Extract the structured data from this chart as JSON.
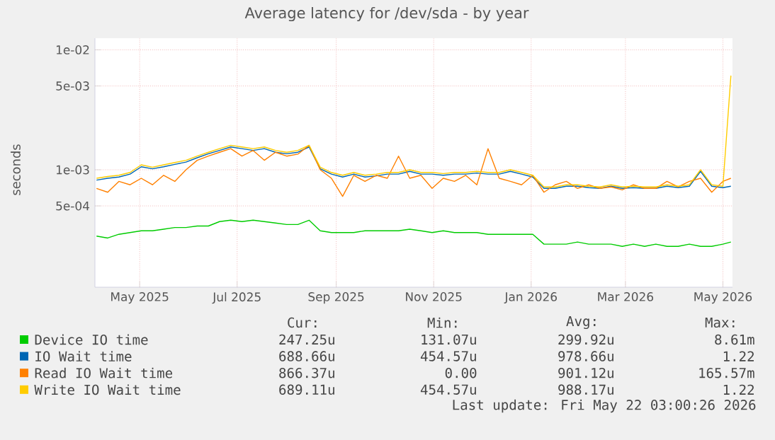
{
  "chart_data": {
    "type": "line",
    "title": "Average latency for /dev/sda - by year",
    "ylabel": "seconds",
    "log": true,
    "grid": true,
    "legend": "bottom",
    "xlim": [
      "2025-04-18",
      "2026-05-22"
    ],
    "ylim": [
      0.000105,
      0.0125
    ],
    "xticks": [
      {
        "value": "2025-05-16",
        "label": "May 2025"
      },
      {
        "value": "2025-07-16",
        "label": "Jul 2025"
      },
      {
        "value": "2025-09-16",
        "label": "Sep 2025"
      },
      {
        "value": "2025-11-16",
        "label": "Nov 2025"
      },
      {
        "value": "2026-01-16",
        "label": "Jan 2026"
      },
      {
        "value": "2026-03-16",
        "label": "Mar 2026"
      },
      {
        "value": "2026-05-16",
        "label": "May 2026"
      }
    ],
    "yticks": [
      {
        "value": 0.0005,
        "label": "5e-04"
      },
      {
        "value": 0.001,
        "label": "1e-03"
      },
      {
        "value": 0.005,
        "label": "5e-03"
      },
      {
        "value": 0.01,
        "label": "1e-02"
      }
    ],
    "x": [
      "2025-04-19",
      "2025-04-26",
      "2025-05-03",
      "2025-05-10",
      "2025-05-17",
      "2025-05-24",
      "2025-05-31",
      "2025-06-07",
      "2025-06-14",
      "2025-06-21",
      "2025-06-28",
      "2025-07-05",
      "2025-07-12",
      "2025-07-19",
      "2025-07-26",
      "2025-08-02",
      "2025-08-09",
      "2025-08-16",
      "2025-08-23",
      "2025-08-30",
      "2025-09-06",
      "2025-09-13",
      "2025-09-20",
      "2025-09-27",
      "2025-10-04",
      "2025-10-11",
      "2025-10-18",
      "2025-10-25",
      "2025-11-01",
      "2025-11-08",
      "2025-11-15",
      "2025-11-22",
      "2025-11-29",
      "2025-12-06",
      "2025-12-13",
      "2025-12-20",
      "2025-12-27",
      "2026-01-03",
      "2026-01-10",
      "2026-01-17",
      "2026-01-24",
      "2026-01-31",
      "2026-02-07",
      "2026-02-14",
      "2026-02-21",
      "2026-02-28",
      "2026-03-07",
      "2026-03-14",
      "2026-03-21",
      "2026-03-28",
      "2026-04-04",
      "2026-04-11",
      "2026-04-18",
      "2026-04-25",
      "2026-05-02",
      "2026-05-09",
      "2026-05-16",
      "2026-05-21"
    ],
    "series": [
      {
        "name": "Device IO time",
        "color": "#00cc00",
        "values": [
          0.00028,
          0.00027,
          0.00029,
          0.0003,
          0.00031,
          0.00031,
          0.00032,
          0.00033,
          0.00033,
          0.00034,
          0.00034,
          0.00037,
          0.00038,
          0.00037,
          0.00038,
          0.00037,
          0.00036,
          0.00035,
          0.00035,
          0.00038,
          0.00031,
          0.0003,
          0.0003,
          0.0003,
          0.00031,
          0.00031,
          0.00031,
          0.00031,
          0.00032,
          0.00031,
          0.0003,
          0.00031,
          0.0003,
          0.0003,
          0.0003,
          0.00029,
          0.00029,
          0.00029,
          0.00029,
          0.00029,
          0.00024,
          0.00024,
          0.00024,
          0.00025,
          0.00024,
          0.00024,
          0.00024,
          0.00023,
          0.00024,
          0.00023,
          0.00024,
          0.00023,
          0.00023,
          0.00024,
          0.00023,
          0.00023,
          0.00024,
          0.00025
        ]
      },
      {
        "name": "IO Wait time",
        "color": "#0066b3",
        "values": [
          0.00082,
          0.00085,
          0.00087,
          0.00092,
          0.00106,
          0.00102,
          0.00106,
          0.00111,
          0.00116,
          0.00126,
          0.00136,
          0.00145,
          0.00155,
          0.0015,
          0.00145,
          0.0015,
          0.0014,
          0.00136,
          0.0014,
          0.00155,
          0.00102,
          0.00092,
          0.00087,
          0.00092,
          0.00087,
          0.00089,
          0.00092,
          0.00092,
          0.00097,
          0.00092,
          0.00092,
          0.0009,
          0.00092,
          0.00092,
          0.00094,
          0.00092,
          0.00092,
          0.00097,
          0.00092,
          0.00087,
          0.0007,
          0.0007,
          0.00073,
          0.00073,
          0.00071,
          0.0007,
          0.00073,
          0.0007,
          0.00071,
          0.0007,
          0.0007,
          0.00073,
          0.00071,
          0.00073,
          0.00097,
          0.00073,
          0.00071,
          0.00073
        ]
      },
      {
        "name": "Read IO Wait time",
        "color": "#ff8000",
        "values": [
          0.0007,
          0.00065,
          0.0008,
          0.00075,
          0.00085,
          0.00075,
          0.0009,
          0.0008,
          0.001,
          0.0012,
          0.0013,
          0.0014,
          0.0015,
          0.0013,
          0.00145,
          0.0012,
          0.0014,
          0.0013,
          0.00135,
          0.0016,
          0.001,
          0.00085,
          0.0006,
          0.0009,
          0.0008,
          0.0009,
          0.00085,
          0.0013,
          0.00085,
          0.0009,
          0.0007,
          0.00085,
          0.0008,
          0.0009,
          0.00075,
          0.0015,
          0.00085,
          0.0008,
          0.00075,
          0.0009,
          0.00065,
          0.00075,
          0.0008,
          0.0007,
          0.00075,
          0.0007,
          0.00072,
          0.00068,
          0.00075,
          0.0007,
          0.0007,
          0.0008,
          0.00072,
          0.0008,
          0.00085,
          0.00065,
          0.0008,
          0.00085
        ]
      },
      {
        "name": "Write IO Wait time",
        "color": "#ffcc00",
        "values": [
          0.00085,
          0.00088,
          0.0009,
          0.00095,
          0.0011,
          0.00105,
          0.0011,
          0.00115,
          0.0012,
          0.0013,
          0.0014,
          0.0015,
          0.0016,
          0.00155,
          0.0015,
          0.00155,
          0.00145,
          0.0014,
          0.00145,
          0.0016,
          0.00105,
          0.00095,
          0.0009,
          0.00095,
          0.0009,
          0.00092,
          0.00095,
          0.00095,
          0.001,
          0.00095,
          0.00095,
          0.00093,
          0.00095,
          0.00095,
          0.00097,
          0.00095,
          0.00095,
          0.001,
          0.00095,
          0.0009,
          0.00072,
          0.00072,
          0.00075,
          0.00075,
          0.00073,
          0.00072,
          0.00075,
          0.00072,
          0.00073,
          0.00072,
          0.00072,
          0.00075,
          0.00073,
          0.00075,
          0.001,
          0.00075,
          0.00073,
          0.0061
        ]
      }
    ],
    "annotations": [
      "Cur:",
      "Min:",
      "Avg:",
      "Max:",
      "247.25u",
      "131.07u",
      "299.92u",
      "8.61m",
      "688.66u",
      "454.57u",
      "978.66u",
      "1.22",
      "866.37u",
      "0.00",
      "901.12u",
      "165.57m",
      "689.11u",
      "454.57u",
      "988.17u",
      "1.22",
      "Last update: Fri May 22 03:00:26 2026"
    ]
  }
}
